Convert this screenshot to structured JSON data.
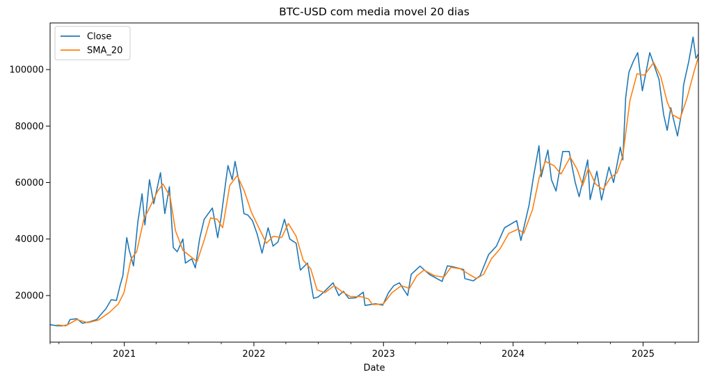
{
  "chart_data": {
    "type": "line",
    "title": "BTC-USD com media movel 20 dias",
    "xlabel": "Date",
    "ylabel": "",
    "xlim": [
      "2020-06-06",
      "2025-06-06"
    ],
    "ylim": [
      3500,
      116500
    ],
    "x_ticks": [
      {
        "date": "2021-01-01",
        "label": "2021"
      },
      {
        "date": "2022-01-01",
        "label": "2022"
      },
      {
        "date": "2023-01-01",
        "label": "2023"
      },
      {
        "date": "2024-01-01",
        "label": "2024"
      },
      {
        "date": "2025-01-01",
        "label": "2025"
      }
    ],
    "y_ticks": [
      {
        "value": 20000,
        "label": "20000"
      },
      {
        "value": 40000,
        "label": "40000"
      },
      {
        "value": 60000,
        "label": "60000"
      },
      {
        "value": 80000,
        "label": "80000"
      },
      {
        "value": 100000,
        "label": "100000"
      }
    ],
    "grid": false,
    "legend_position": "top-left",
    "series": [
      {
        "name": "Close",
        "color": "#1f77b4",
        "points": [
          [
            "2020-06-06",
            9700
          ],
          [
            "2020-06-25",
            9300
          ],
          [
            "2020-07-10",
            9250
          ],
          [
            "2020-07-25",
            9600
          ],
          [
            "2020-08-01",
            11500
          ],
          [
            "2020-08-20",
            11800
          ],
          [
            "2020-09-05",
            10200
          ],
          [
            "2020-09-25",
            10700
          ],
          [
            "2020-10-15",
            11500
          ],
          [
            "2020-10-25",
            13000
          ],
          [
            "2020-11-10",
            15300
          ],
          [
            "2020-11-25",
            18500
          ],
          [
            "2020-12-10",
            18300
          ],
          [
            "2020-12-20",
            23500
          ],
          [
            "2020-12-28",
            27000
          ],
          [
            "2021-01-08",
            40500
          ],
          [
            "2021-01-15",
            36000
          ],
          [
            "2021-01-27",
            30500
          ],
          [
            "2021-02-08",
            46000
          ],
          [
            "2021-02-20",
            56000
          ],
          [
            "2021-02-28",
            45000
          ],
          [
            "2021-03-13",
            61000
          ],
          [
            "2021-03-25",
            52500
          ],
          [
            "2021-04-13",
            63500
          ],
          [
            "2021-04-25",
            49000
          ],
          [
            "2021-05-08",
            58500
          ],
          [
            "2021-05-19",
            37000
          ],
          [
            "2021-05-30",
            35500
          ],
          [
            "2021-06-15",
            40000
          ],
          [
            "2021-06-22",
            31500
          ],
          [
            "2021-07-10",
            33000
          ],
          [
            "2021-07-20",
            29800
          ],
          [
            "2021-08-01",
            40000
          ],
          [
            "2021-08-14",
            47000
          ],
          [
            "2021-09-06",
            51000
          ],
          [
            "2021-09-21",
            40500
          ],
          [
            "2021-10-01",
            48000
          ],
          [
            "2021-10-15",
            61500
          ],
          [
            "2021-10-20",
            66000
          ],
          [
            "2021-11-01",
            61000
          ],
          [
            "2021-11-09",
            67500
          ],
          [
            "2021-11-25",
            57000
          ],
          [
            "2021-12-04",
            49000
          ],
          [
            "2021-12-15",
            48500
          ],
          [
            "2021-12-28",
            46500
          ],
          [
            "2022-01-10",
            41800
          ],
          [
            "2022-01-24",
            35000
          ],
          [
            "2022-02-10",
            44000
          ],
          [
            "2022-02-24",
            37500
          ],
          [
            "2022-03-10",
            39000
          ],
          [
            "2022-03-28",
            47000
          ],
          [
            "2022-04-12",
            40000
          ],
          [
            "2022-04-30",
            38500
          ],
          [
            "2022-05-12",
            29000
          ],
          [
            "2022-06-01",
            31500
          ],
          [
            "2022-06-18",
            19000
          ],
          [
            "2022-07-01",
            19500
          ],
          [
            "2022-07-15",
            21000
          ],
          [
            "2022-08-12",
            24500
          ],
          [
            "2022-08-28",
            20000
          ],
          [
            "2022-09-10",
            21500
          ],
          [
            "2022-09-25",
            19000
          ],
          [
            "2022-10-15",
            19200
          ],
          [
            "2022-11-05",
            21200
          ],
          [
            "2022-11-10",
            16500
          ],
          [
            "2022-12-10",
            17100
          ],
          [
            "2022-12-30",
            16600
          ],
          [
            "2023-01-15",
            21000
          ],
          [
            "2023-01-30",
            23500
          ],
          [
            "2023-02-15",
            24500
          ],
          [
            "2023-03-10",
            20000
          ],
          [
            "2023-03-20",
            27500
          ],
          [
            "2023-04-14",
            30400
          ],
          [
            "2023-05-10",
            27500
          ],
          [
            "2023-06-15",
            25000
          ],
          [
            "2023-06-30",
            30500
          ],
          [
            "2023-07-15",
            30200
          ],
          [
            "2023-08-15",
            29200
          ],
          [
            "2023-08-18",
            26000
          ],
          [
            "2023-09-11",
            25200
          ],
          [
            "2023-09-30",
            27000
          ],
          [
            "2023-10-24",
            34500
          ],
          [
            "2023-11-15",
            37500
          ],
          [
            "2023-12-08",
            44000
          ],
          [
            "2024-01-11",
            46500
          ],
          [
            "2024-01-23",
            39500
          ],
          [
            "2024-02-15",
            52000
          ],
          [
            "2024-02-28",
            62500
          ],
          [
            "2024-03-14",
            73000
          ],
          [
            "2024-03-20",
            62000
          ],
          [
            "2024-04-08",
            71500
          ],
          [
            "2024-04-18",
            61000
          ],
          [
            "2024-05-01",
            57000
          ],
          [
            "2024-05-20",
            71000
          ],
          [
            "2024-06-07",
            71000
          ],
          [
            "2024-06-24",
            60000
          ],
          [
            "2024-07-05",
            55000
          ],
          [
            "2024-07-29",
            68000
          ],
          [
            "2024-08-05",
            54000
          ],
          [
            "2024-08-24",
            64000
          ],
          [
            "2024-09-06",
            53800
          ],
          [
            "2024-09-27",
            65500
          ],
          [
            "2024-10-10",
            60000
          ],
          [
            "2024-10-29",
            72500
          ],
          [
            "2024-11-05",
            68000
          ],
          [
            "2024-11-13",
            90000
          ],
          [
            "2024-11-22",
            99000
          ],
          [
            "2024-12-05",
            103000
          ],
          [
            "2024-12-17",
            106000
          ],
          [
            "2024-12-30",
            92500
          ],
          [
            "2025-01-20",
            106000
          ],
          [
            "2025-01-31",
            102000
          ],
          [
            "2025-02-15",
            96500
          ],
          [
            "2025-02-28",
            84000
          ],
          [
            "2025-03-10",
            78500
          ],
          [
            "2025-03-20",
            86500
          ],
          [
            "2025-04-08",
            76500
          ],
          [
            "2025-04-20",
            85000
          ],
          [
            "2025-04-25",
            94500
          ],
          [
            "2025-05-10",
            103000
          ],
          [
            "2025-05-22",
            111500
          ],
          [
            "2025-05-30",
            104000
          ],
          [
            "2025-06-06",
            105500
          ]
        ]
      },
      {
        "name": "SMA_20",
        "color": "#ff7f0e",
        "points": [
          [
            "2020-06-25",
            9600
          ],
          [
            "2020-07-20",
            9250
          ],
          [
            "2020-08-20",
            11500
          ],
          [
            "2020-09-20",
            10400
          ],
          [
            "2020-10-20",
            11300
          ],
          [
            "2020-11-20",
            14000
          ],
          [
            "2020-12-15",
            17000
          ],
          [
            "2020-12-31",
            21000
          ],
          [
            "2021-01-20",
            33000
          ],
          [
            "2021-02-05",
            35500
          ],
          [
            "2021-02-25",
            47000
          ],
          [
            "2021-03-15",
            51500
          ],
          [
            "2021-04-05",
            57000
          ],
          [
            "2021-04-20",
            59500
          ],
          [
            "2021-05-10",
            55000
          ],
          [
            "2021-05-25",
            43000
          ],
          [
            "2021-06-15",
            36000
          ],
          [
            "2021-07-05",
            34000
          ],
          [
            "2021-07-25",
            32000
          ],
          [
            "2021-08-15",
            40000
          ],
          [
            "2021-09-01",
            47500
          ],
          [
            "2021-09-20",
            47000
          ],
          [
            "2021-10-05",
            44000
          ],
          [
            "2021-10-25",
            59000
          ],
          [
            "2021-11-15",
            62500
          ],
          [
            "2021-12-05",
            57000
          ],
          [
            "2021-12-25",
            49500
          ],
          [
            "2022-01-15",
            44000
          ],
          [
            "2022-02-05",
            38500
          ],
          [
            "2022-02-25",
            41000
          ],
          [
            "2022-03-20",
            40500
          ],
          [
            "2022-04-08",
            45500
          ],
          [
            "2022-04-30",
            41000
          ],
          [
            "2022-05-20",
            32500
          ],
          [
            "2022-06-10",
            29500
          ],
          [
            "2022-06-28",
            22000
          ],
          [
            "2022-07-20",
            21000
          ],
          [
            "2022-08-15",
            23500
          ],
          [
            "2022-09-05",
            21500
          ],
          [
            "2022-09-30",
            19600
          ],
          [
            "2022-10-30",
            19600
          ],
          [
            "2022-11-20",
            18800
          ],
          [
            "2022-12-01",
            16800
          ],
          [
            "2022-12-31",
            17000
          ],
          [
            "2023-01-25",
            21000
          ],
          [
            "2023-02-20",
            23500
          ],
          [
            "2023-03-15",
            22500
          ],
          [
            "2023-04-05",
            27000
          ],
          [
            "2023-04-25",
            29000
          ],
          [
            "2023-05-25",
            27000
          ],
          [
            "2023-06-20",
            26500
          ],
          [
            "2023-07-10",
            30000
          ],
          [
            "2023-08-05",
            29500
          ],
          [
            "2023-08-30",
            27500
          ],
          [
            "2023-09-20",
            26000
          ],
          [
            "2023-10-10",
            27500
          ],
          [
            "2023-11-01",
            33000
          ],
          [
            "2023-11-25",
            36500
          ],
          [
            "2023-12-20",
            42000
          ],
          [
            "2024-01-15",
            43500
          ],
          [
            "2024-01-31",
            42000
          ],
          [
            "2024-02-25",
            50500
          ],
          [
            "2024-03-15",
            62000
          ],
          [
            "2024-04-01",
            67500
          ],
          [
            "2024-04-25",
            66000
          ],
          [
            "2024-05-15",
            63000
          ],
          [
            "2024-06-10",
            69000
          ],
          [
            "2024-06-30",
            64500
          ],
          [
            "2024-07-15",
            59000
          ],
          [
            "2024-07-31",
            65000
          ],
          [
            "2024-08-20",
            59500
          ],
          [
            "2024-09-10",
            57500
          ],
          [
            "2024-09-30",
            61500
          ],
          [
            "2024-10-20",
            63500
          ],
          [
            "2024-11-05",
            69500
          ],
          [
            "2024-11-25",
            89000
          ],
          [
            "2024-12-15",
            98500
          ],
          [
            "2025-01-05",
            98000
          ],
          [
            "2025-01-31",
            102500
          ],
          [
            "2025-02-20",
            97500
          ],
          [
            "2025-03-10",
            88500
          ],
          [
            "2025-03-25",
            84000
          ],
          [
            "2025-04-15",
            82500
          ],
          [
            "2025-05-05",
            90000
          ],
          [
            "2025-05-25",
            99500
          ],
          [
            "2025-06-06",
            104500
          ]
        ]
      }
    ]
  }
}
